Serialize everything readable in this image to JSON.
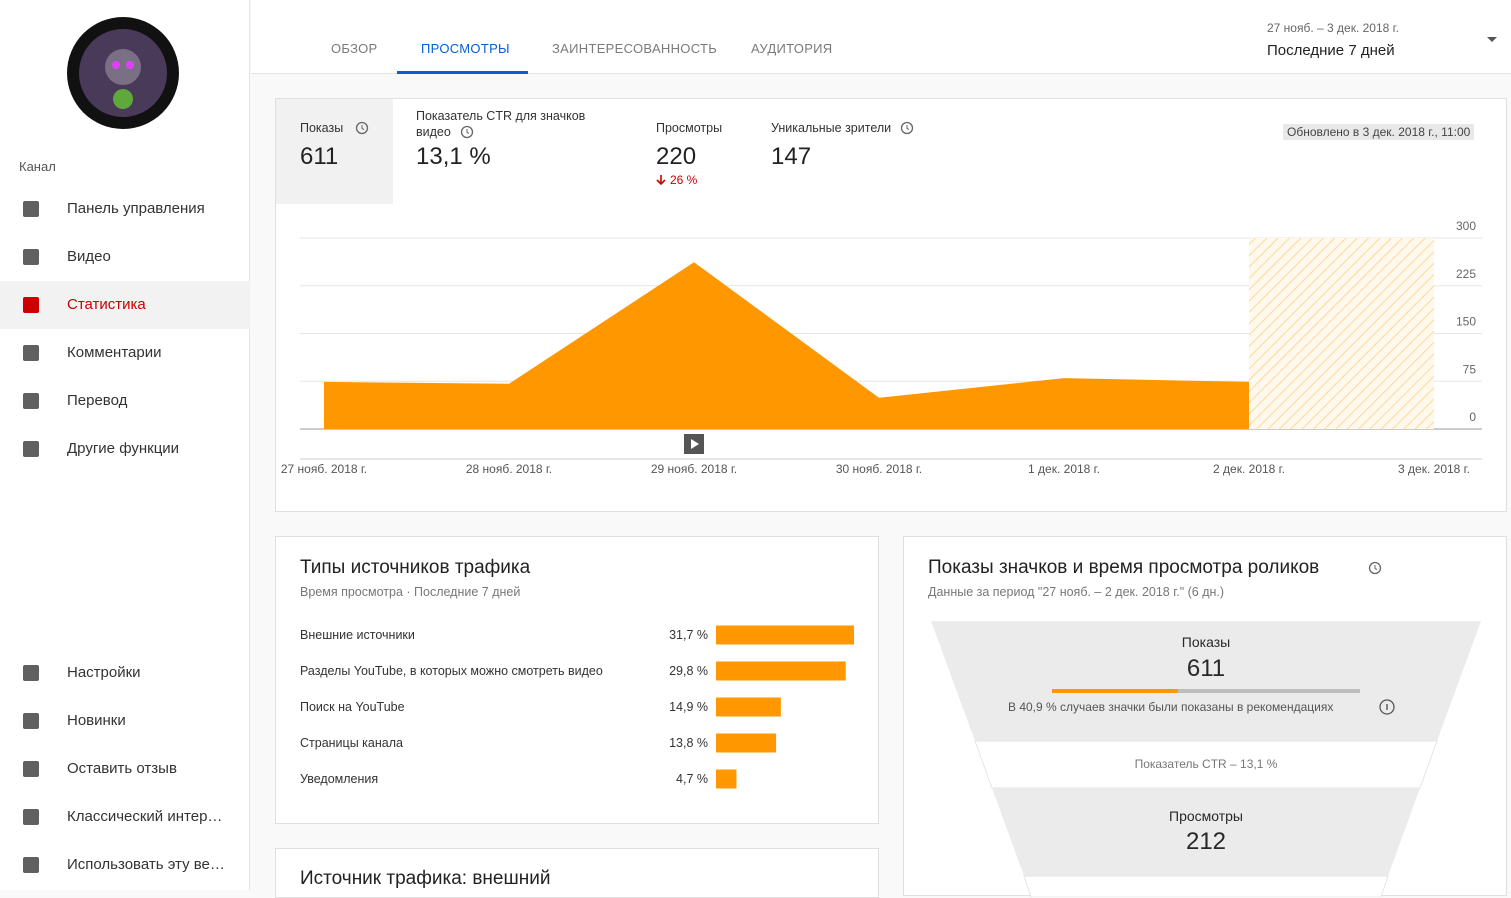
{
  "sidebar": {
    "section": "Канал",
    "items": [
      "Панель управления",
      "Видео",
      "Статистика",
      "Комментарии",
      "Перевод",
      "Другие функции"
    ],
    "bottom_items": [
      "Настройки",
      "Новинки",
      "Оставить отзыв",
      "Классический интер…",
      "Использовать эту ве…"
    ]
  },
  "tabs": [
    "ОБЗОР",
    "ПРОСМОТРЫ",
    "ЗАИНТЕРЕСОВАННОСТЬ",
    "АУДИТОРИЯ"
  ],
  "date_range": {
    "dates": "27 нояб. – 3 дек. 2018 г.",
    "label": "Последние 7 дней"
  },
  "metrics": [
    {
      "name": "Показы",
      "value": "611"
    },
    {
      "name": "Показатель CTR для значков видео",
      "value": "13,1 %"
    },
    {
      "name": "Просмотры",
      "value": "220",
      "change": "26 %"
    },
    {
      "name": "Уникальные зрители",
      "value": "147"
    }
  ],
  "updated": "Обновлено в 3 дек. 2018 г., 11:00",
  "views_chart": {
    "type": "area",
    "color": "#ff9800",
    "x": [
      "27 нояб. 2018 г.",
      "28 нояб. 2018 г.",
      "29 нояб. 2018 г.",
      "30 нояб. 2018 г.",
      "1 дек. 2018 г.",
      "2 дек. 2018 г.",
      "3 дек. 2018 г."
    ],
    "values": [
      74,
      71,
      262,
      49,
      80,
      74,
      null
    ],
    "ylim": [
      0,
      300
    ],
    "yticks": [
      0,
      75,
      150,
      225,
      300
    ],
    "grid": true
  },
  "traffic": {
    "title": "Типы источников трафика",
    "subtitle": "Время просмотра · Последние 7 дней",
    "chart": {
      "type": "bar",
      "color": "#ff9800",
      "categories": [
        "Внешние источники",
        "Разделы YouTube, в которых можно смотреть видео",
        "Поиск на YouTube",
        "Страницы канала",
        "Уведомления"
      ],
      "values": [
        31.7,
        29.8,
        14.9,
        13.8,
        4.7
      ],
      "value_labels": [
        "31,7 %",
        "29,8 %",
        "14,9 %",
        "13,8 %",
        "4,7 %"
      ]
    }
  },
  "funnel": {
    "title": "Показы значков и время просмотра роликов",
    "subtitle": "Данные за период \"27 нояб. – 2 дек. 2018 г.\" (6 дн.)",
    "impressions_label": "Показы",
    "impressions": "611",
    "recommended_share": 40.9,
    "recommended_note": "В 40,9 % случаев значки были показаны в рекомендациях",
    "ctr": "Показатель CTR – 13,1 %",
    "views_label": "Просмотры",
    "views": "212"
  },
  "bottom_card": {
    "title": "Источник трафика: внешний"
  }
}
